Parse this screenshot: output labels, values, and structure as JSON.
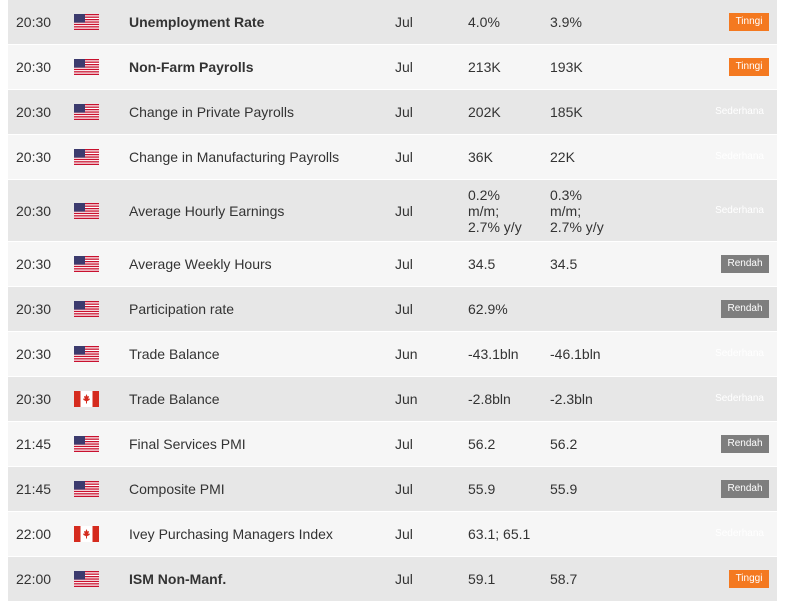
{
  "colors": {
    "high": "#f47920",
    "medium": "#31b23a",
    "low": "#7e7e7e",
    "row_odd": "#e7e7e7",
    "row_even": "#f6f6f6"
  },
  "rows": [
    {
      "time": "20:30",
      "country": "us-flag-icon",
      "event": "Unemployment Rate",
      "bold": true,
      "period": "Jul",
      "actual": "4.0%",
      "forecast": "3.9%",
      "impact": "Tinngi",
      "level": "high"
    },
    {
      "time": "20:30",
      "country": "us-flag-icon",
      "event": "Non-Farm Payrolls",
      "bold": true,
      "period": "Jul",
      "actual": "213K",
      "forecast": "193K",
      "impact": "Tinngi",
      "level": "high"
    },
    {
      "time": "20:30",
      "country": "us-flag-icon",
      "event": "Change in Private Payrolls",
      "bold": false,
      "period": "Jul",
      "actual": "202K",
      "forecast": "185K",
      "impact": "Sederhana",
      "level": "medium"
    },
    {
      "time": "20:30",
      "country": "us-flag-icon",
      "event": "Change in Manufacturing Payrolls",
      "bold": false,
      "period": "Jul",
      "actual": "36K",
      "forecast": "22K",
      "impact": "Sederhana",
      "level": "medium"
    },
    {
      "time": "20:30",
      "country": "us-flag-icon",
      "event": "Average Hourly Earnings",
      "bold": false,
      "period": "Jul",
      "actual": "0.2%\nm/m;\n2.7% y/y",
      "forecast": "0.3%\nm/m;\n2.7% y/y",
      "impact": "Sederhana",
      "level": "medium"
    },
    {
      "time": "20:30",
      "country": "us-flag-icon",
      "event": "Average Weekly Hours",
      "bold": false,
      "period": "Jul",
      "actual": "34.5",
      "forecast": "34.5",
      "impact": "Rendah",
      "level": "low"
    },
    {
      "time": "20:30",
      "country": "us-flag-icon",
      "event": "Participation rate",
      "bold": false,
      "period": "Jul",
      "actual": "62.9%",
      "forecast": "",
      "impact": "Rendah",
      "level": "low"
    },
    {
      "time": "20:30",
      "country": "us-flag-icon",
      "event": "Trade Balance",
      "bold": false,
      "period": "Jun",
      "actual": "-43.1bln",
      "forecast": "-46.1bln",
      "impact": "Sederhana",
      "level": "medium"
    },
    {
      "time": "20:30",
      "country": "ca-flag-icon",
      "event": "Trade Balance",
      "bold": false,
      "period": "Jun",
      "actual": "-2.8bln",
      "forecast": "-2.3bln",
      "impact": "Sederhana",
      "level": "medium"
    },
    {
      "time": "21:45",
      "country": "us-flag-icon",
      "event": "Final Services PMI",
      "bold": false,
      "period": "Jul",
      "actual": "56.2",
      "forecast": "56.2",
      "impact": "Rendah",
      "level": "low"
    },
    {
      "time": "21:45",
      "country": "us-flag-icon",
      "event": "Composite PMI",
      "bold": false,
      "period": "Jul",
      "actual": "55.9",
      "forecast": "55.9",
      "impact": "Rendah",
      "level": "low"
    },
    {
      "time": "22:00",
      "country": "ca-flag-icon",
      "event": "Ivey Purchasing Managers Index",
      "bold": false,
      "period": "Jul",
      "actual": "63.1; 65.1",
      "forecast": "",
      "impact": "Sederhana",
      "level": "medium"
    },
    {
      "time": "22:00",
      "country": "us-flag-icon",
      "event": "ISM Non-Manf.",
      "bold": true,
      "period": "Jul",
      "actual": "59.1",
      "forecast": "58.7",
      "impact": "Tinggi",
      "level": "high"
    }
  ]
}
